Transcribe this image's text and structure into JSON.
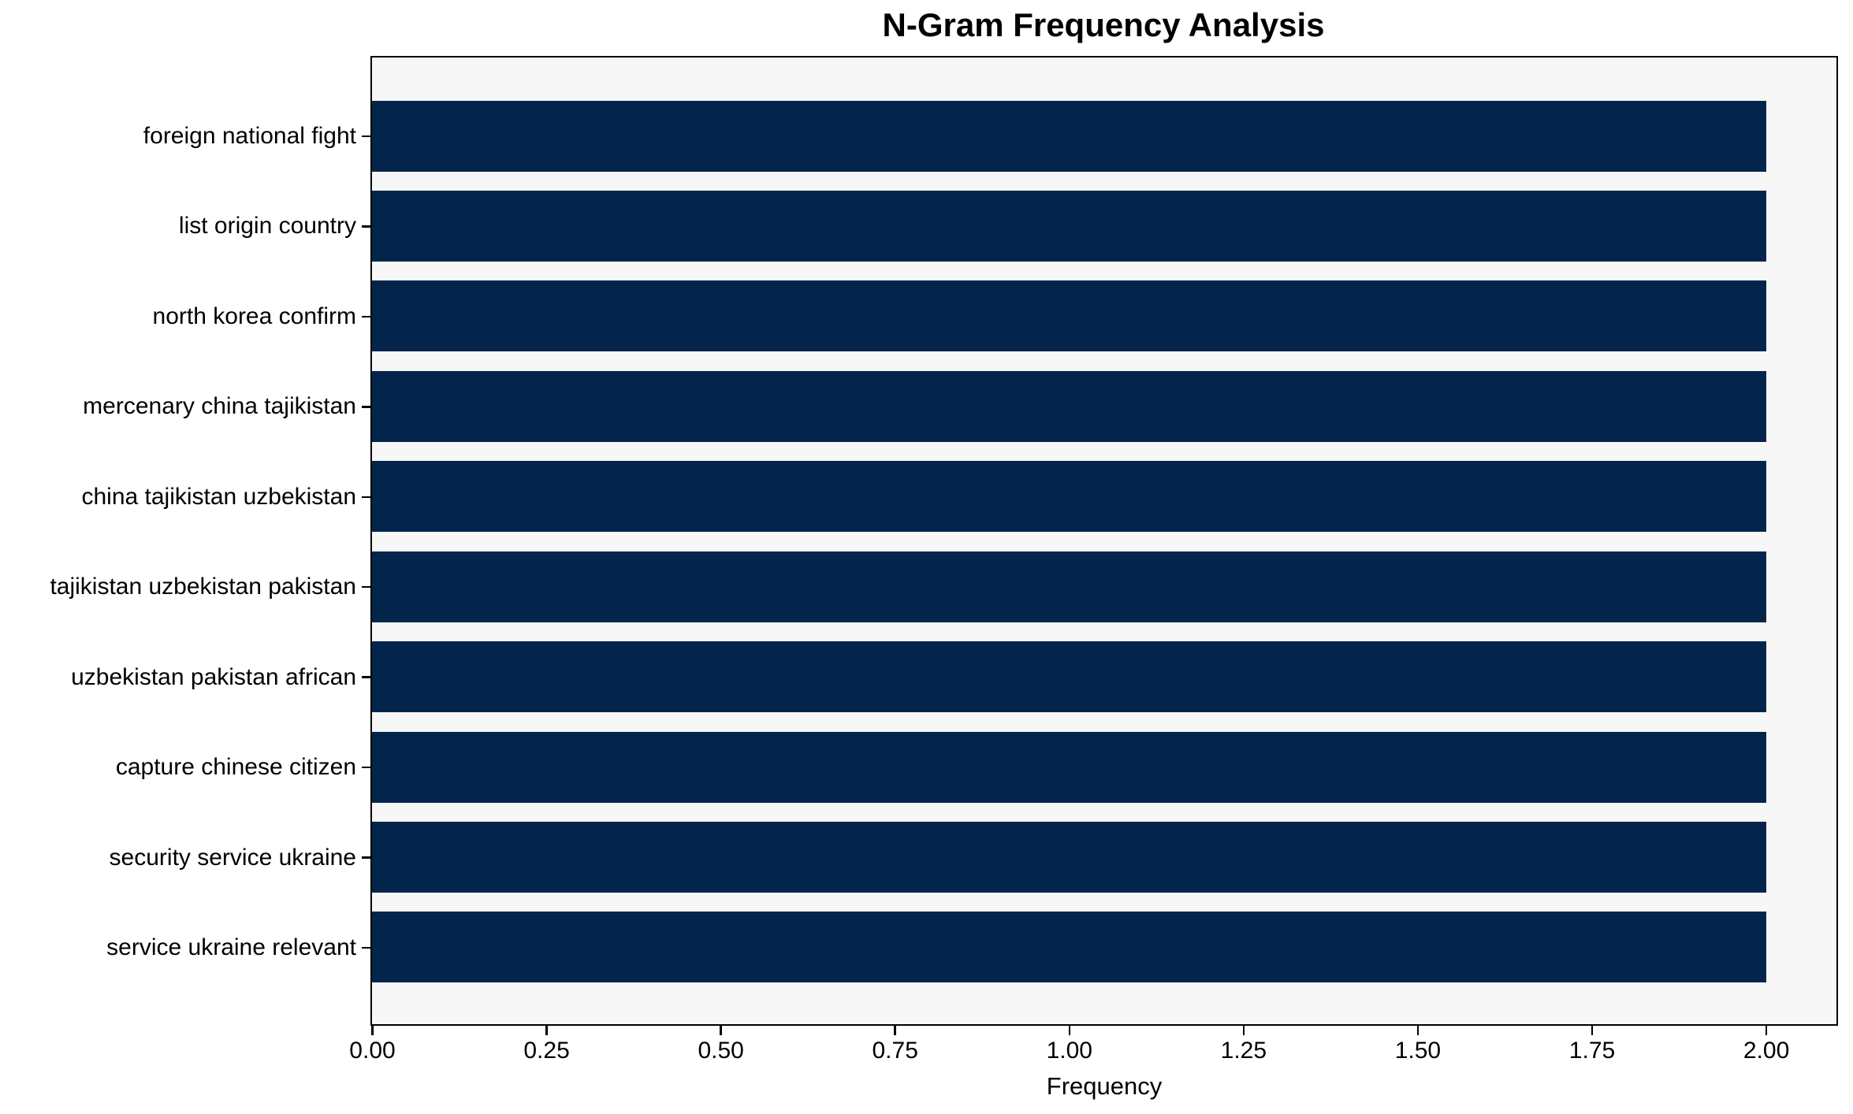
{
  "chart_data": {
    "type": "bar",
    "orientation": "horizontal",
    "title": "N-Gram Frequency Analysis",
    "xlabel": "Frequency",
    "ylabel": "",
    "categories": [
      "foreign national fight",
      "list origin country",
      "north korea confirm",
      "mercenary china tajikistan",
      "china tajikistan uzbekistan",
      "tajikistan uzbekistan pakistan",
      "uzbekistan pakistan african",
      "capture chinese citizen",
      "security service ukraine",
      "service ukraine relevant"
    ],
    "values": [
      2,
      2,
      2,
      2,
      2,
      2,
      2,
      2,
      2,
      2
    ],
    "xlim": [
      0,
      2.1
    ],
    "xtick_labels": [
      "0.00",
      "0.25",
      "0.50",
      "0.75",
      "1.00",
      "1.25",
      "1.50",
      "1.75",
      "2.00"
    ],
    "grid": false,
    "legend": null,
    "colors": {
      "bar": "#03254c",
      "plot_bg": "#f7f7f7",
      "spine": "#000000",
      "text": "#000000",
      "page_bg": "#ffffff"
    }
  }
}
